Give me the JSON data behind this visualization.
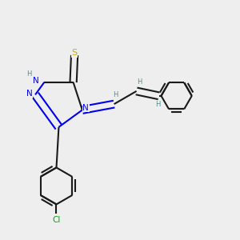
{
  "bg_color": "#eeeeee",
  "bond_color": "#1a1a1a",
  "N_color": "#0000ee",
  "S_color": "#ccaa00",
  "Cl_color": "#00aa00",
  "H_color": "#4a9090",
  "line_width": 1.5,
  "figsize": [
    3.0,
    3.0
  ],
  "dpi": 100,
  "xlim": [
    0.0,
    1.0
  ],
  "ylim": [
    0.05,
    1.05
  ]
}
